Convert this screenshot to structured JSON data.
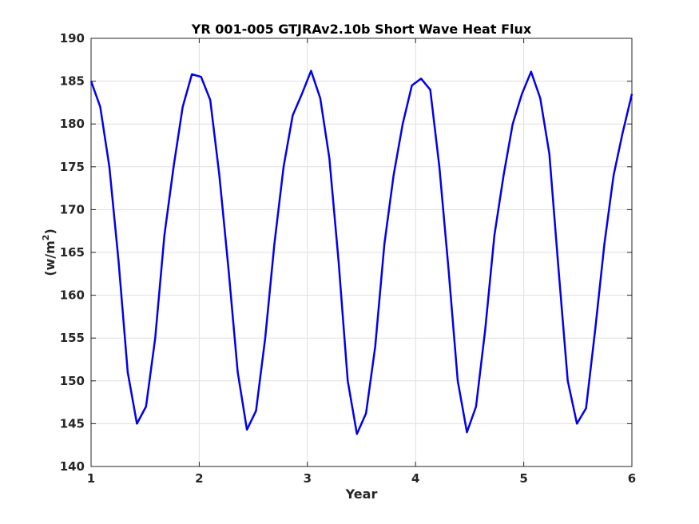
{
  "chart_data": {
    "type": "line",
    "title": "YR 001-005 GTJRAv2.10b Short Wave Heat Flux",
    "xlabel": "Year",
    "ylabel_main": "(w/m",
    "ylabel_sup": "2",
    "ylabel_close": ")",
    "xlim": [
      1,
      6
    ],
    "ylim": [
      140,
      190
    ],
    "xticks": [
      1,
      2,
      3,
      4,
      5,
      6
    ],
    "yticks": [
      140,
      145,
      150,
      155,
      160,
      165,
      170,
      175,
      180,
      185,
      190
    ],
    "grid": true,
    "line_color": "#0000ee",
    "series": [
      {
        "values": [
          185.0,
          182.0,
          175.0,
          164.0,
          151.0,
          145.0,
          147.0,
          155.0,
          167.0,
          175.0,
          182.0,
          185.8,
          185.5,
          182.8,
          174.0,
          163.0,
          151.0,
          144.3,
          146.5,
          155.0,
          166.0,
          175.0,
          181.0,
          183.5,
          186.2,
          183.0,
          176.0,
          164.0,
          150.0,
          143.8,
          146.2,
          154.0,
          166.0,
          174.0,
          180.0,
          184.5,
          185.3,
          184.0,
          175.0,
          163.0,
          150.0,
          144.0,
          147.0,
          156.0,
          167.0,
          174.0,
          180.0,
          183.5,
          186.1,
          183.0,
          176.5,
          163.0,
          150.0,
          145.0,
          146.8,
          156.0,
          166.0,
          174.0,
          179.0,
          183.5
        ]
      }
    ]
  }
}
